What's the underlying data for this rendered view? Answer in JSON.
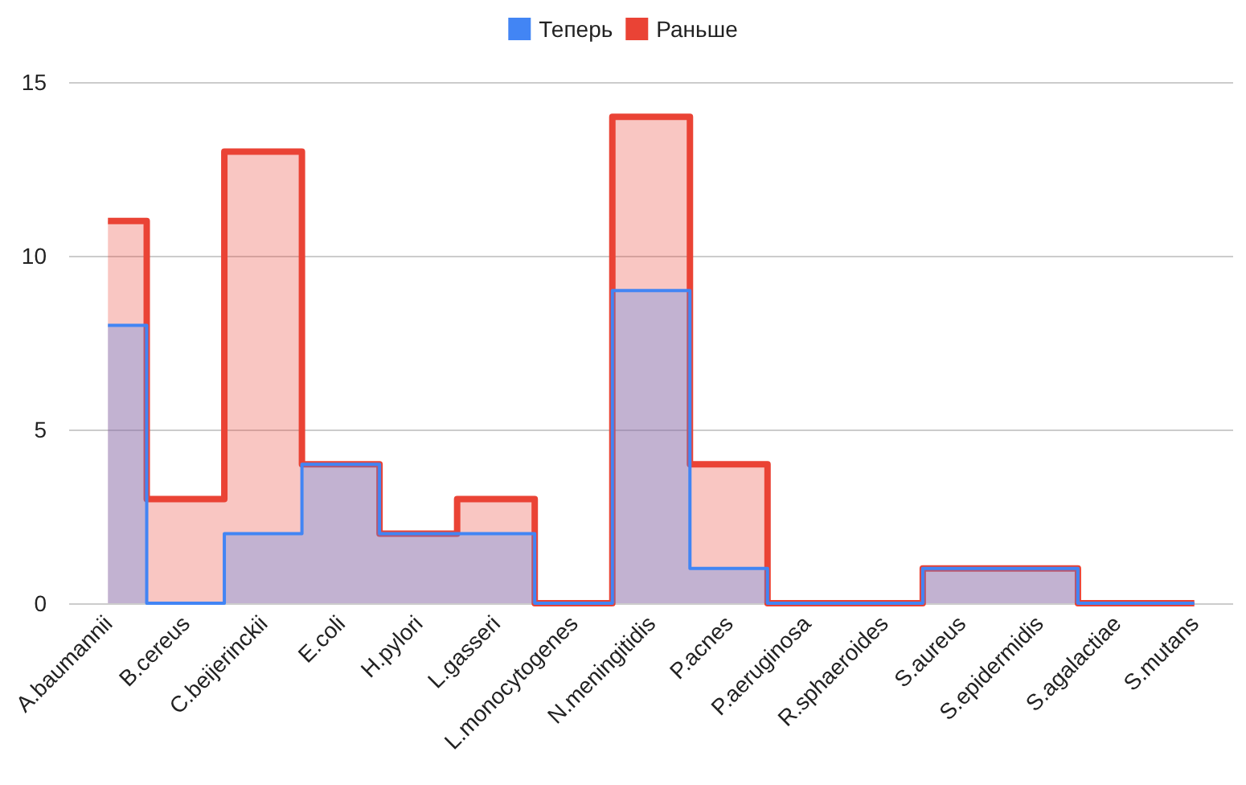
{
  "chart_data": {
    "type": "step",
    "categories": [
      "A.baumannii",
      "B.cereus",
      "C.beijerinckii",
      "E.coli",
      "H.pylori",
      "L.gasseri",
      "L.monocytogenes",
      "N.meningitidis",
      "P.acnes",
      "P.aeruginosa",
      "R.sphaeroides",
      "S.aureus",
      "S.epidermidis",
      "S.agalactiae",
      "S.mutans"
    ],
    "series": [
      {
        "name": "Теперь",
        "color": "#4285f4",
        "values": [
          8,
          0,
          2,
          4,
          2,
          2,
          0,
          9,
          1,
          0,
          0,
          1,
          1,
          0,
          0
        ]
      },
      {
        "name": "Раньше",
        "color": "#ea4335",
        "values": [
          11,
          3,
          13,
          4,
          2,
          3,
          0,
          14,
          4,
          0,
          0,
          1,
          1,
          0,
          0
        ]
      }
    ],
    "ylim": [
      0,
      15
    ],
    "yticks": [
      0,
      5,
      10,
      15
    ],
    "grid": "y",
    "legend": "top"
  }
}
